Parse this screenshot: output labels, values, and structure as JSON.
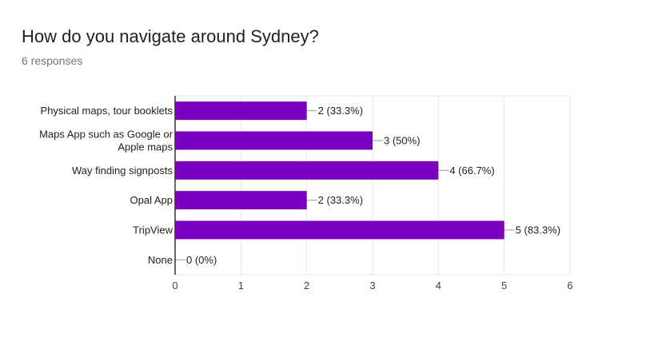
{
  "header": {
    "title": "How do you navigate around Sydney?",
    "subtitle": "6 responses"
  },
  "chart_data": {
    "type": "bar",
    "orientation": "horizontal",
    "categories": [
      [
        "Physical maps, tour booklets"
      ],
      [
        "Maps App such as Google or",
        "Apple maps"
      ],
      [
        "Way finding signposts"
      ],
      [
        "Opal App"
      ],
      [
        "TripView"
      ],
      [
        "None"
      ]
    ],
    "values": [
      2,
      3,
      4,
      2,
      5,
      0
    ],
    "value_labels": [
      "2 (33.3%)",
      "3 (50%)",
      "4 (66.7%)",
      "2 (33.3%)",
      "5 (83.3%)",
      "0 (0%)"
    ],
    "xticks": [
      0,
      1,
      2,
      3,
      4,
      5,
      6
    ],
    "xlim": [
      0,
      6
    ],
    "bar_color": "#7b00c0",
    "grid": true
  }
}
